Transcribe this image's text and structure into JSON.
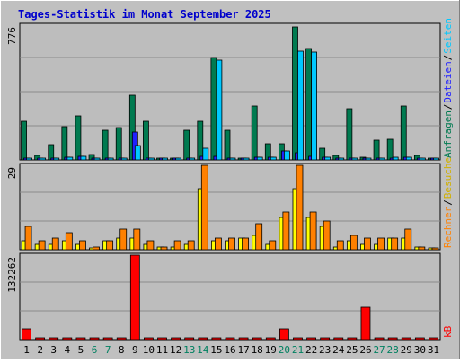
{
  "title": "Tages-Statistik im Monat September 2025",
  "colors": {
    "background": "#c0c0c0",
    "plot_bg": "#bdbdbd",
    "grid": "#8a8a8a",
    "title": "#0000cc",
    "anfragen": "#007a50",
    "dateien": "#2020ff",
    "seiten": "#00c8ff",
    "besuche": "#ffff00",
    "rechner": "#ff8000",
    "kb": "#ff0000",
    "weekend_label": "#008060",
    "label": "#000000"
  },
  "chart_data": [
    {
      "type": "bar",
      "name": "Anfragen / Dateien / Seiten",
      "ytick": "776",
      "ylim": [
        0,
        776
      ],
      "right_labels": [
        "Anfragen",
        "/",
        "Dateien",
        "/",
        "Seiten"
      ],
      "categories": [
        "1",
        "2",
        "3",
        "4",
        "5",
        "6",
        "7",
        "8",
        "9",
        "10",
        "11",
        "12",
        "13",
        "14",
        "15",
        "16",
        "17",
        "18",
        "19",
        "20",
        "21",
        "22",
        "23",
        "24",
        "25",
        "26",
        "27",
        "28",
        "29",
        "30",
        "31"
      ],
      "series": [
        {
          "name": "Anfragen",
          "values": [
            220,
            25,
            90,
            190,
            255,
            30,
            170,
            185,
            375,
            225,
            0,
            0,
            170,
            225,
            590,
            170,
            12,
            310,
            95,
            95,
            768,
            640,
            65,
            25,
            295,
            15,
            115,
            120,
            310,
            25,
            0
          ]
        },
        {
          "name": "Dateien",
          "values": [
            5,
            8,
            10,
            15,
            20,
            5,
            10,
            10,
            160,
            10,
            0,
            0,
            10,
            20,
            20,
            10,
            8,
            15,
            15,
            50,
            40,
            20,
            15,
            10,
            10,
            10,
            10,
            10,
            15,
            5,
            0
          ]
        },
        {
          "name": "Seiten",
          "values": [
            5,
            8,
            10,
            15,
            20,
            5,
            10,
            10,
            85,
            10,
            0,
            0,
            10,
            65,
            575,
            10,
            8,
            15,
            15,
            50,
            625,
            620,
            15,
            10,
            10,
            10,
            10,
            15,
            15,
            5,
            0
          ]
        }
      ]
    },
    {
      "type": "bar",
      "name": "Besuche / Rechner",
      "ytick": "29",
      "ylim": [
        0,
        29
      ],
      "right_labels": [
        "Rechner",
        "/",
        "Besuche"
      ],
      "categories": [
        "1",
        "2",
        "3",
        "4",
        "5",
        "6",
        "7",
        "8",
        "9",
        "10",
        "11",
        "12",
        "13",
        "14",
        "15",
        "16",
        "17",
        "18",
        "19",
        "20",
        "21",
        "22",
        "23",
        "24",
        "25",
        "26",
        "27",
        "28",
        "29",
        "30",
        "31"
      ],
      "series": [
        {
          "name": "Besuche",
          "values": [
            3,
            2,
            2,
            3,
            2,
            0,
            3,
            4,
            4,
            2,
            1,
            1,
            2,
            21,
            3,
            3,
            4,
            5,
            2,
            11,
            21,
            11,
            8,
            1,
            3,
            2,
            2,
            4,
            4,
            1,
            0
          ]
        },
        {
          "name": "Rechner",
          "values": [
            8,
            3,
            4,
            6,
            3,
            1,
            3,
            7,
            7,
            3,
            1,
            3,
            3,
            29,
            4,
            4,
            4,
            9,
            3,
            13,
            29,
            13,
            10,
            3,
            5,
            4,
            4,
            4,
            7,
            1,
            0
          ]
        }
      ]
    },
    {
      "type": "bar",
      "name": "kB",
      "ytick": "132262",
      "ylim": [
        0,
        132262
      ],
      "right_labels": [
        "kB"
      ],
      "categories": [
        "1",
        "2",
        "3",
        "4",
        "5",
        "6",
        "7",
        "8",
        "9",
        "10",
        "11",
        "12",
        "13",
        "14",
        "15",
        "16",
        "17",
        "18",
        "19",
        "20",
        "21",
        "22",
        "23",
        "24",
        "25",
        "26",
        "27",
        "28",
        "29",
        "30",
        "31"
      ],
      "series": [
        {
          "name": "kB",
          "values": [
            17000,
            0,
            0,
            0,
            0,
            0,
            0,
            0,
            132000,
            0,
            0,
            0,
            0,
            0,
            0,
            0,
            0,
            0,
            0,
            17000,
            0,
            0,
            0,
            0,
            0,
            51000,
            0,
            0,
            0,
            0,
            0
          ]
        }
      ]
    }
  ],
  "x_labels": {
    "days": [
      "1",
      "2",
      "3",
      "4",
      "5",
      "6",
      "7",
      "8",
      "9",
      "10",
      "11",
      "12",
      "13",
      "14",
      "15",
      "16",
      "17",
      "18",
      "19",
      "20",
      "21",
      "22",
      "23",
      "24",
      "25",
      "26",
      "27",
      "28",
      "29",
      "30",
      "31"
    ],
    "weekend": [
      "6",
      "7",
      "13",
      "14",
      "20",
      "21",
      "27",
      "28"
    ]
  }
}
